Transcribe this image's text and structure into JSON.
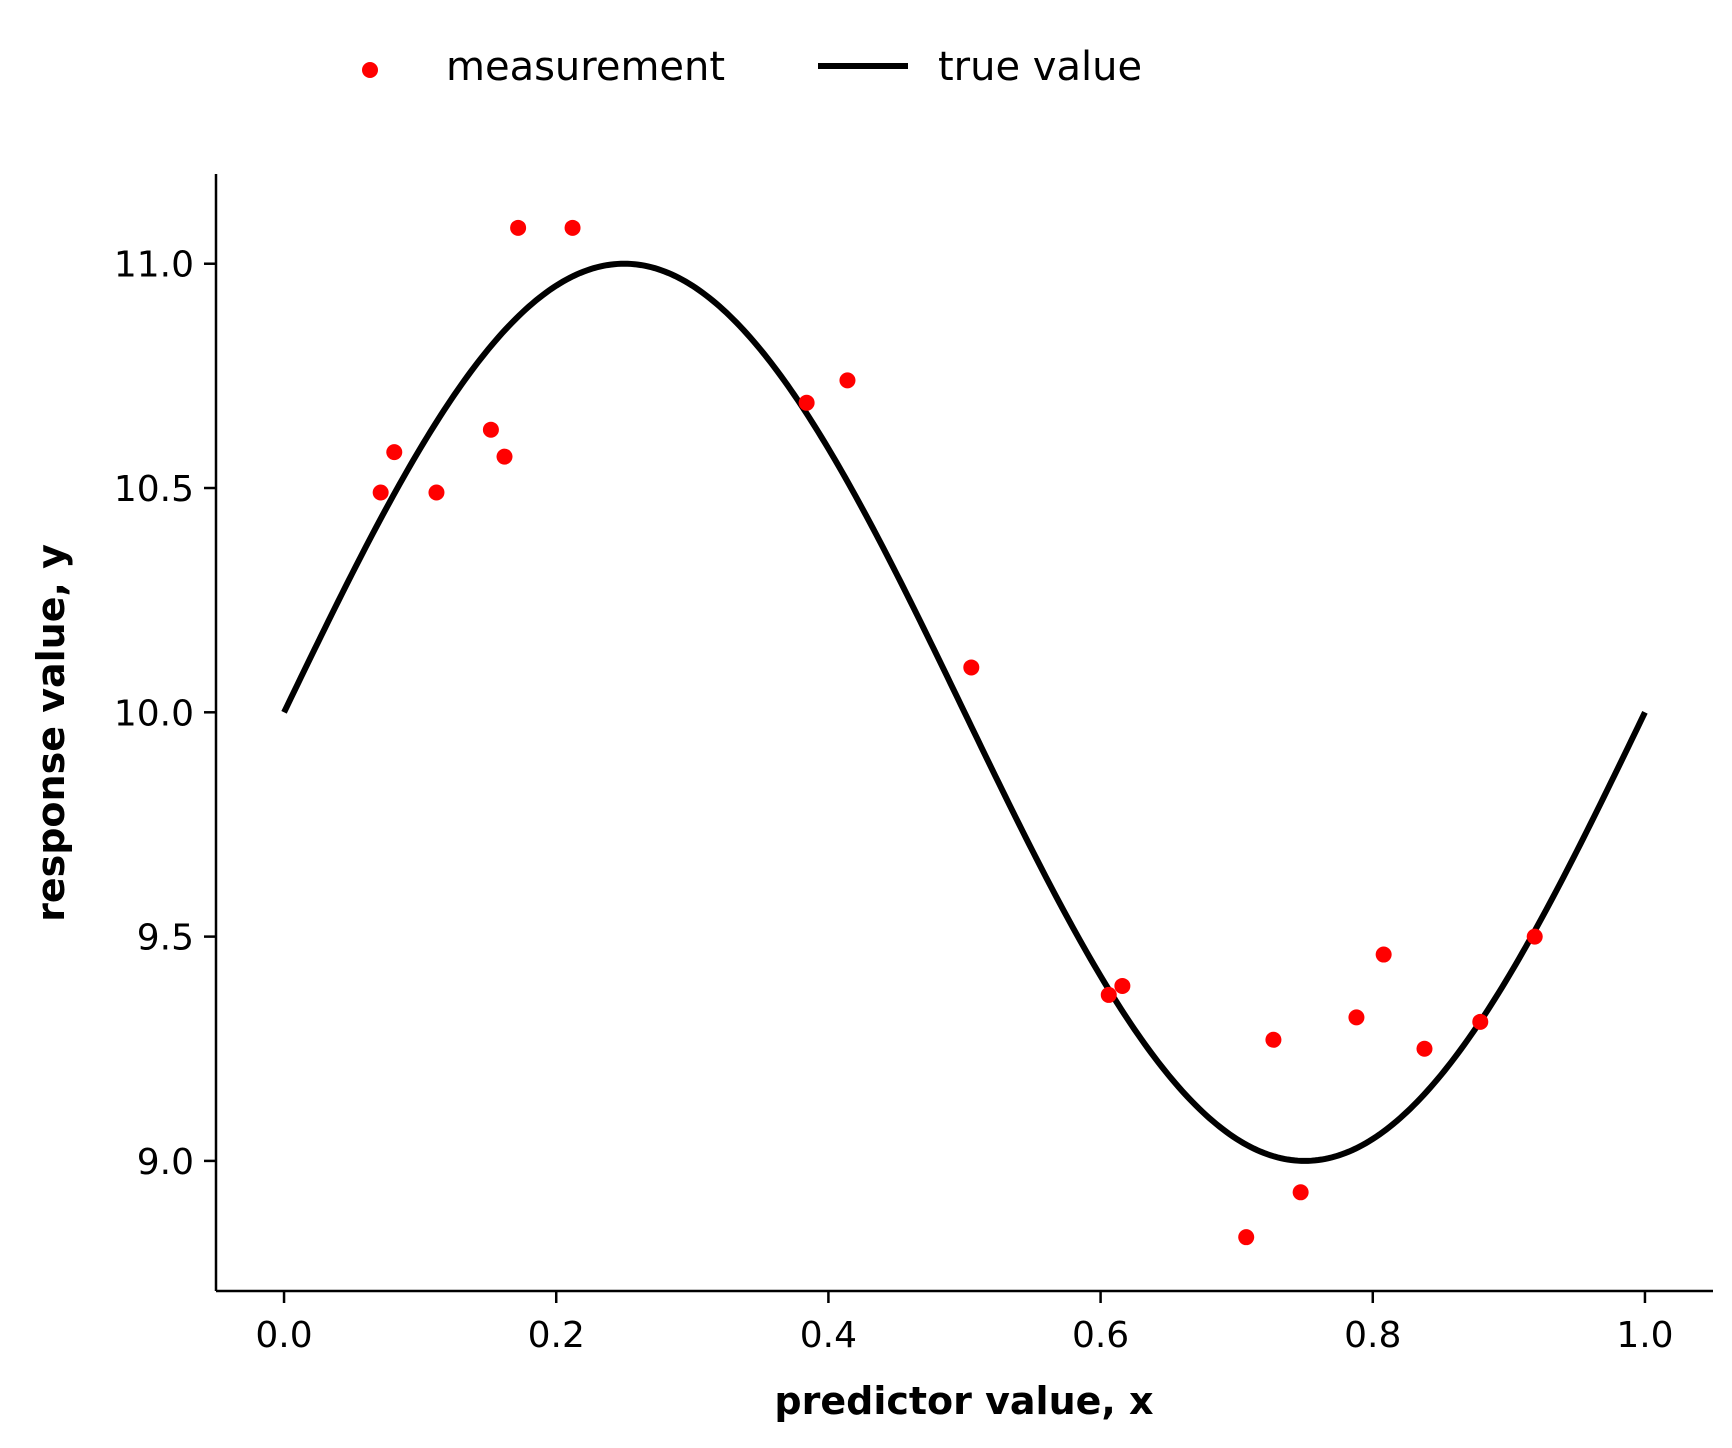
{
  "chart_data": {
    "type": "scatter",
    "xlabel": "predictor value, x",
    "ylabel": "response value, y",
    "xlim": [
      -0.05,
      1.05
    ],
    "ylim": [
      8.71,
      11.2
    ],
    "xticks": [
      0.0,
      0.2,
      0.4,
      0.6,
      0.8,
      1.0
    ],
    "xtick_labels": [
      "0.0",
      "0.2",
      "0.4",
      "0.6",
      "0.8",
      "1.0"
    ],
    "yticks": [
      9.0,
      9.5,
      10.0,
      10.5,
      11.0
    ],
    "ytick_labels": [
      "9.0",
      "9.5",
      "10.0",
      "10.5",
      "11.0"
    ],
    "grid": false,
    "legend_position": "top-center",
    "series": [
      {
        "name": "measurement",
        "kind": "scatter",
        "color": "#ff0000",
        "points": [
          [
            0.071,
            10.49
          ],
          [
            0.081,
            10.58
          ],
          [
            0.112,
            10.49
          ],
          [
            0.152,
            10.63
          ],
          [
            0.162,
            10.57
          ],
          [
            0.172,
            11.08
          ],
          [
            0.212,
            11.08
          ],
          [
            0.384,
            10.69
          ],
          [
            0.414,
            10.74
          ],
          [
            0.505,
            10.1
          ],
          [
            0.606,
            9.37
          ],
          [
            0.616,
            9.39
          ],
          [
            0.707,
            8.83
          ],
          [
            0.727,
            9.27
          ],
          [
            0.747,
            8.93
          ],
          [
            0.788,
            9.32
          ],
          [
            0.808,
            9.46
          ],
          [
            0.838,
            9.25
          ],
          [
            0.879,
            9.31
          ],
          [
            0.919,
            9.5
          ]
        ]
      },
      {
        "name": "true value",
        "kind": "line",
        "color": "#000000",
        "function": "10 + sin(2*pi*x)",
        "x_range": [
          0.0,
          1.0
        ]
      }
    ]
  }
}
